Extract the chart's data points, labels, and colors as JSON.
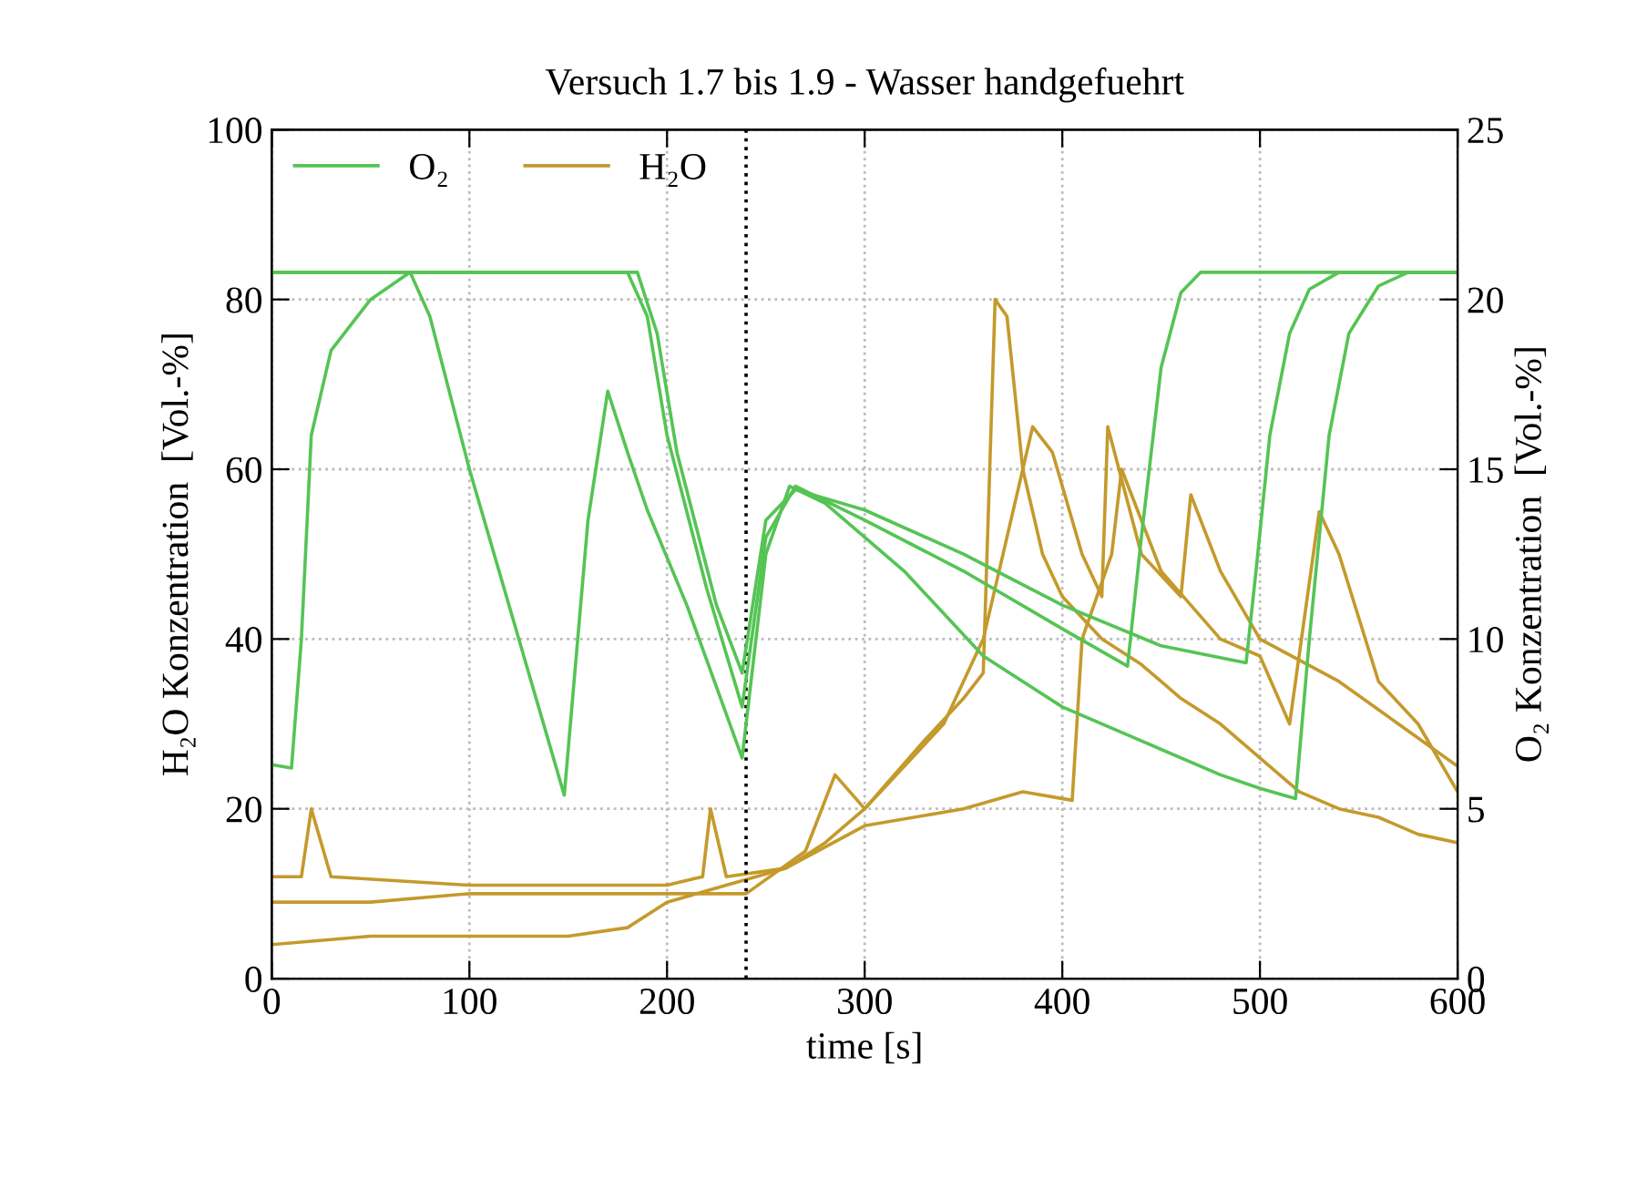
{
  "chart_data": {
    "type": "line",
    "title": "Versuch 1.7 bis 1.9 - Wasser handgefuehrt",
    "xlabel": "time [s]",
    "ylabel": "H₂O Konzentration  [Vol.-%]",
    "y2label": "O₂ Konzentration  [Vol.-%]",
    "xlim": [
      0,
      600
    ],
    "xticks": [
      0,
      100,
      200,
      300,
      400,
      500,
      600
    ],
    "ylim": [
      0,
      100
    ],
    "yticks": [
      0,
      20,
      40,
      60,
      80,
      100
    ],
    "y2lim": [
      0,
      25
    ],
    "y2ticks": [
      0,
      5,
      10,
      15,
      20,
      25
    ],
    "grid": true,
    "legend": "top left",
    "line_style": "solid",
    "ref_lines": [
      {
        "axis": "x",
        "value": 240,
        "color": "#000000",
        "line_style": "dotted"
      }
    ],
    "series": [
      {
        "name": "O₂",
        "color": "#55c455",
        "axis": "y2",
        "x": [
          0,
          10,
          15,
          20,
          30,
          50,
          70,
          80,
          100,
          120,
          148,
          160,
          170,
          180,
          190,
          210,
          238,
          250,
          262,
          280,
          320,
          360,
          400,
          440,
          480,
          500,
          518,
          525,
          535,
          545,
          560,
          575,
          600
        ],
        "values": [
          6.3,
          6.2,
          10,
          16,
          18.5,
          20.0,
          20.8,
          19.5,
          15,
          11,
          5.4,
          13.5,
          17.3,
          15.5,
          13.8,
          11,
          6.5,
          12.5,
          14.5,
          14.0,
          12.0,
          9.5,
          8.0,
          7.0,
          6.0,
          5.6,
          5.3,
          10,
          16,
          19,
          20.4,
          20.8,
          20.8
        ]
      },
      {
        "color": "#55c455",
        "axis": "y2",
        "x": [
          0,
          100,
          180,
          190,
          200,
          220,
          238,
          250,
          265,
          300,
          350,
          400,
          433,
          440,
          450,
          460,
          470,
          500,
          600
        ],
        "values": [
          20.8,
          20.8,
          20.8,
          19.5,
          16,
          11.5,
          8.0,
          13.0,
          14.5,
          13.5,
          12.0,
          10.3,
          9.2,
          13,
          18,
          20.2,
          20.8,
          20.8,
          20.8
        ]
      },
      {
        "color": "#55c455",
        "axis": "y2",
        "x": [
          0,
          100,
          185,
          195,
          205,
          225,
          238,
          250,
          265,
          300,
          350,
          400,
          450,
          493,
          498,
          505,
          515,
          525,
          540,
          600
        ],
        "values": [
          20.8,
          20.8,
          20.8,
          19,
          15.5,
          11,
          9.0,
          13.5,
          14.4,
          13.8,
          12.5,
          11.0,
          9.8,
          9.3,
          12,
          16,
          19,
          20.3,
          20.8,
          20.8
        ]
      },
      {
        "name": "H₂O",
        "color": "#c49a2c",
        "x": [
          0,
          50,
          100,
          150,
          180,
          200,
          230,
          260,
          280,
          300,
          330,
          350,
          360,
          366,
          372,
          380,
          390,
          400,
          420,
          440,
          460,
          480,
          500,
          520,
          540,
          560,
          580,
          600
        ],
        "values": [
          4,
          5,
          5,
          5,
          6,
          9,
          11,
          13,
          16,
          20,
          28,
          33,
          36,
          80,
          78,
          60,
          50,
          45,
          40,
          37,
          33,
          30,
          26,
          22,
          20,
          19,
          17,
          16
        ]
      },
      {
        "color": "#c49a2c",
        "x": [
          0,
          50,
          100,
          150,
          200,
          240,
          270,
          285,
          300,
          340,
          360,
          375,
          385,
          395,
          410,
          420,
          423,
          440,
          460,
          465,
          480,
          500,
          540,
          570,
          600
        ],
        "values": [
          9,
          9,
          10,
          10,
          10,
          10,
          15,
          24,
          20,
          30,
          40,
          55,
          65,
          62,
          50,
          45,
          65,
          50,
          45,
          57,
          48,
          40,
          35,
          30,
          25
        ]
      },
      {
        "color": "#c49a2c",
        "x": [
          0,
          15,
          20,
          30,
          100,
          200,
          218,
          222,
          230,
          260,
          300,
          350,
          380,
          405,
          410,
          425,
          430,
          450,
          480,
          500,
          515,
          530,
          540,
          560,
          580,
          600
        ],
        "values": [
          12,
          12,
          20,
          12,
          11,
          11,
          12,
          20,
          12,
          13,
          18,
          20,
          22,
          21,
          40,
          50,
          60,
          48,
          40,
          38,
          30,
          55,
          50,
          35,
          30,
          22
        ]
      }
    ]
  }
}
